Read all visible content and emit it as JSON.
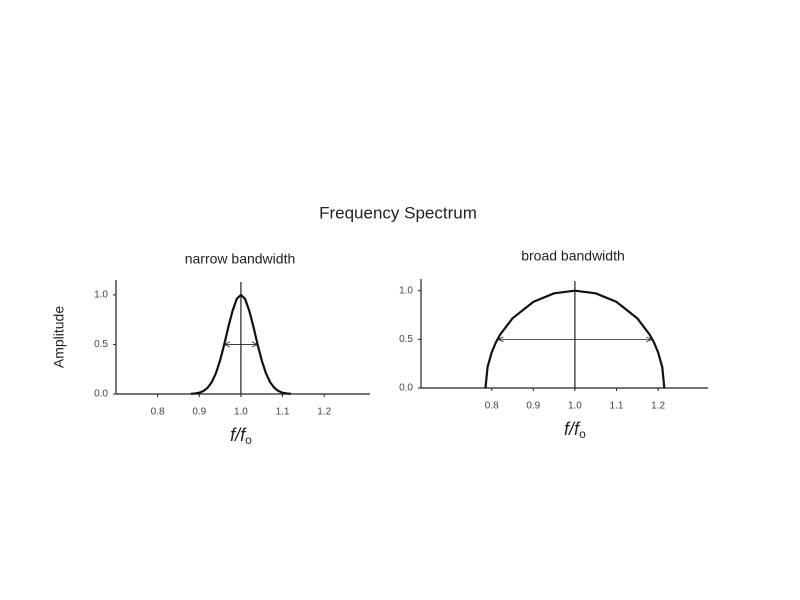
{
  "title": "Frequency Spectrum",
  "chart_data": [
    {
      "type": "line",
      "title": "narrow bandwidth",
      "ylabel": "Amplitude",
      "xlabel": "f/f",
      "xlabel_sub": "o",
      "x": [
        0.88,
        0.89,
        0.9,
        0.91,
        0.92,
        0.93,
        0.94,
        0.95,
        0.96,
        0.97,
        0.98,
        0.99,
        1.0,
        1.01,
        1.02,
        1.03,
        1.04,
        1.05,
        1.06,
        1.07,
        1.08,
        1.09,
        1.1,
        1.11,
        1.12
      ],
      "values": [
        0.002,
        0.006,
        0.013,
        0.03,
        0.063,
        0.12,
        0.21,
        0.34,
        0.5,
        0.68,
        0.84,
        0.96,
        1.0,
        0.96,
        0.84,
        0.68,
        0.5,
        0.34,
        0.21,
        0.12,
        0.063,
        0.03,
        0.013,
        0.006,
        0.002
      ],
      "color": "#111111",
      "xlim": [
        0.7,
        1.31
      ],
      "ylim": [
        0,
        1.15
      ],
      "xticks": [
        0.8,
        0.9,
        {
          "value": 1,
          "label": "1.0"
        },
        1.1,
        1.2
      ],
      "yticks": [
        {
          "value": 0,
          "label": "0.0"
        },
        0.5,
        {
          "value": 1,
          "label": "1.0"
        }
      ],
      "center_line": 1,
      "width_arrow": {
        "x": [
          0.96,
          1.04
        ],
        "y": 0.5
      }
    },
    {
      "type": "line",
      "title": "broad bandwidth",
      "xlabel": "f/f",
      "xlabel_sub": "o",
      "x": [
        0.785,
        0.79,
        0.8,
        0.81,
        0.82,
        0.85,
        0.9,
        0.95,
        1.0,
        1.05,
        1.1,
        1.15,
        1.18,
        1.19,
        1.2,
        1.21,
        1.215
      ],
      "values": [
        0,
        0.214,
        0.367,
        0.468,
        0.547,
        0.716,
        0.885,
        0.973,
        1.0,
        0.973,
        0.885,
        0.716,
        0.547,
        0.468,
        0.367,
        0.214,
        0
      ],
      "color": "#111111",
      "xlim": [
        0.63,
        1.32
      ],
      "ylim": [
        0,
        1.12
      ],
      "xticks": [
        0.8,
        0.9,
        {
          "value": 1,
          "label": "1.0"
        },
        1.1,
        1.2
      ],
      "yticks": [
        {
          "value": 0,
          "label": "0.0"
        },
        0.5,
        {
          "value": 1,
          "label": "1.0"
        }
      ],
      "center_line": 1,
      "width_arrow": {
        "x": [
          0.815,
          1.185
        ],
        "y": 0.5
      }
    }
  ]
}
